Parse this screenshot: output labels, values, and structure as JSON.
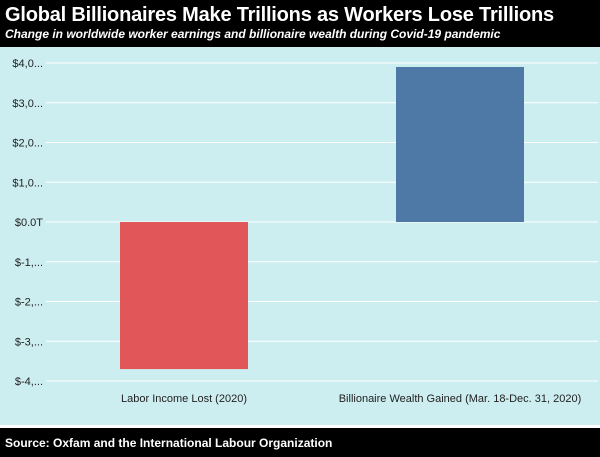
{
  "header": {
    "title": "Global Billionaires Make Trillions as Workers Lose Trillions",
    "subtitle": "Change in worldwide worker earnings and billionaire wealth during Covid-19 pandemic"
  },
  "footer": {
    "source": "Source: Oxfam and the International Labour Organization"
  },
  "colors": {
    "plot_background": "#cdeef0",
    "gridline": "#ffffff",
    "labor_bar": "#e15759",
    "billionaire_bar": "#4e79a7"
  },
  "chart_data": {
    "type": "bar",
    "title": "Global Billionaires Make Trillions as Workers Lose Trillions",
    "subtitle": "Change in worldwide worker earnings and billionaire wealth during Covid-19 pandemic",
    "xlabel": "",
    "ylabel": "",
    "categories": [
      "Labor Income Lost (2020)",
      "Billionaire Wealth Gained (Mar. 18-Dec. 31, 2020)"
    ],
    "values": [
      -3.7,
      3.9
    ],
    "units": "trillions USD",
    "ylim": [
      -4,
      4
    ],
    "yticks": [
      4,
      3,
      2,
      1,
      0,
      -1,
      -2,
      -3,
      -4
    ],
    "ytick_labels": [
      "$4,0...",
      "$3,0...",
      "$2,0...",
      "$1,0...",
      "$0.0T",
      "$-1,...",
      "$-2,...",
      "$-3,...",
      "$-4,..."
    ],
    "bar_colors": [
      "#e15759",
      "#4e79a7"
    ],
    "grid": true,
    "legend": "none"
  }
}
